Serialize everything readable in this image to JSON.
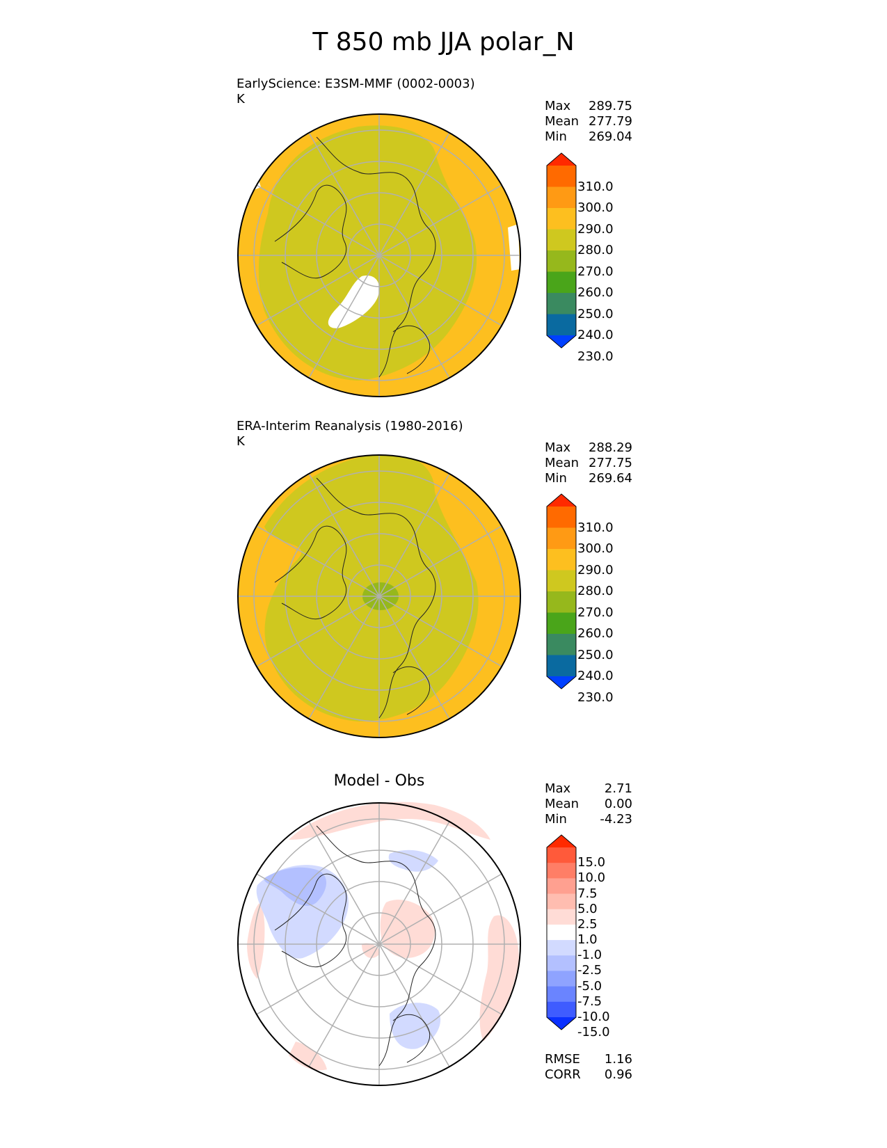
{
  "title": "T 850 mb JJA polar_N",
  "panels": [
    {
      "name": "model",
      "title_line1": "EarlyScience: E3SM-MMF (0002-0003)",
      "title_line2": "K",
      "stats": {
        "max_label": "Max",
        "max": "289.75",
        "mean_label": "Mean",
        "mean": "277.79",
        "min_label": "Min",
        "min": "269.04"
      }
    },
    {
      "name": "obs",
      "title_line1": "ERA-Interim Reanalysis (1980-2016)",
      "title_line2": "K",
      "stats": {
        "max_label": "Max",
        "max": "288.29",
        "mean_label": "Mean",
        "mean": "277.75",
        "min_label": "Min",
        "min": "269.64"
      }
    },
    {
      "name": "diff",
      "title_line1": "Model - Obs",
      "stats": {
        "max_label": "Max",
        "max": "2.71",
        "mean_label": "Mean",
        "mean": "0.00",
        "min_label": "Min",
        "min": "-4.23"
      },
      "metrics": {
        "rmse_label": "RMSE",
        "rmse": "1.16",
        "corr_label": "CORR",
        "corr": "0.96"
      }
    }
  ],
  "colorbar_abs": {
    "labels": [
      "310.0",
      "300.0",
      "290.0",
      "280.0",
      "270.0",
      "260.0",
      "250.0",
      "240.0",
      "230.0"
    ],
    "colors_top_to_bottom": [
      "#ff2a00",
      "#ff6a00",
      "#ff9a14",
      "#fdbf1f",
      "#cfc81f",
      "#96b81c",
      "#4aa51a",
      "#3a8a60",
      "#0a6aa0",
      "#0040ff"
    ]
  },
  "colorbar_diff": {
    "labels": [
      "15.0",
      "10.0",
      "7.5",
      "5.0",
      "2.5",
      "1.0",
      "-1.0",
      "-2.5",
      "-5.0",
      "-7.5",
      "-10.0",
      "-15.0"
    ],
    "colors_top_to_bottom": [
      "#ff2a00",
      "#ff5a3a",
      "#ff7e66",
      "#ffa090",
      "#ffbdb0",
      "#ffdcd6",
      "#ffffff",
      "#d2daff",
      "#b3c0ff",
      "#8fa3ff",
      "#6a84ff",
      "#3f5cff",
      "#0a30ff"
    ]
  },
  "map_colors": {
    "warm": "#fdbf1f",
    "cool": "#cfc81f",
    "cold_center": "#96b81c",
    "missing": "#ffffff",
    "diff_pos": "#ffdcd6",
    "diff_neg": "#d2daff",
    "diff_neg2": "#b3c0ff",
    "grid": "#b0b0b0",
    "coast": "#222222"
  }
}
